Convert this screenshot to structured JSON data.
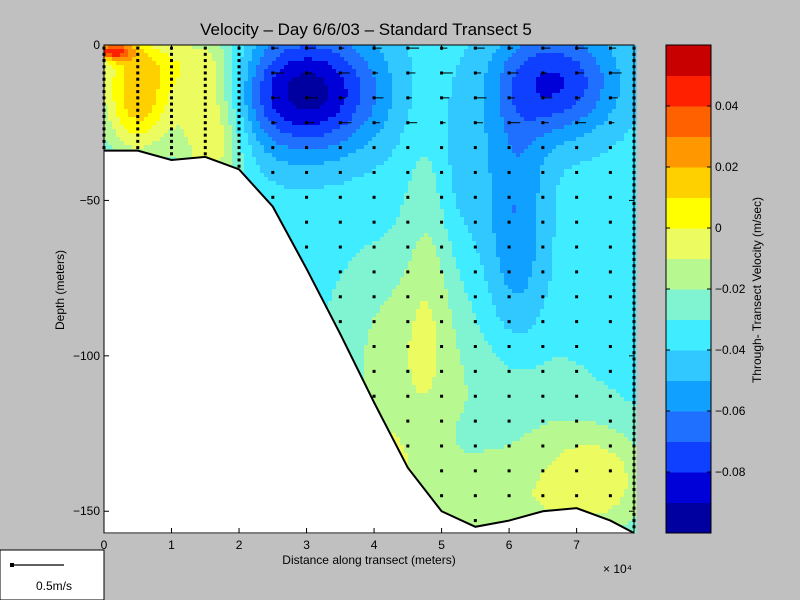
{
  "chart_data": {
    "type": "heatmap",
    "title": "Velocity – Day 6/6/03 – Standard Transect 5",
    "xlabel": "Distance along transect (meters)",
    "ylabel": "Depth (meters)",
    "x_exponent_label": "× 10⁴",
    "xlim": [
      0,
      7.85
    ],
    "ylim": [
      -157,
      0
    ],
    "x_ticks": [
      0,
      1,
      2,
      3,
      4,
      5,
      6,
      7
    ],
    "x_tick_labels": [
      "0",
      "1",
      "2",
      "3",
      "4",
      "5",
      "6",
      "7"
    ],
    "y_ticks": [
      0,
      -50,
      -100,
      -150
    ],
    "y_tick_labels": [
      "0",
      "−50",
      "−100",
      "−150"
    ],
    "colorbar": {
      "label": "Through- Transect Velocity (m/sec)",
      "range": [
        -0.1,
        0.06
      ],
      "levels": [
        -0.1,
        -0.09,
        -0.08,
        -0.07,
        -0.06,
        -0.05,
        -0.04,
        -0.03,
        -0.02,
        -0.01,
        0,
        0.01,
        0.02,
        0.03,
        0.04,
        0.05,
        0.06
      ],
      "colors": [
        "#0000a0",
        "#0000d8",
        "#1040ff",
        "#2070ff",
        "#10a0ff",
        "#30c8ff",
        "#40ecff",
        "#80f4d0",
        "#b8f890",
        "#ecfc60",
        "#ffff00",
        "#ffd000",
        "#ff9800",
        "#ff6000",
        "#ff2000",
        "#c80000"
      ],
      "ticks": [
        0.04,
        0.02,
        0,
        -0.02,
        -0.04,
        -0.06,
        -0.08
      ],
      "tick_labels": [
        "0.04",
        "0.02",
        "0",
        "−0.02",
        "−0.04",
        "−0.06",
        "−0.08"
      ]
    },
    "bottom_profile": {
      "x": [
        0,
        0.5,
        1.0,
        1.5,
        2.0,
        2.5,
        3.0,
        3.5,
        4.0,
        4.5,
        5.0,
        5.5,
        6.0,
        6.5,
        7.0,
        7.5,
        7.85
      ],
      "depth": [
        -34,
        -34,
        -37,
        -36,
        -40,
        -52,
        -72,
        -93,
        -115,
        -136,
        -150,
        -155,
        -153,
        -150,
        -149,
        -153,
        -157
      ]
    },
    "legend": {
      "label": "0.5m/s"
    }
  }
}
